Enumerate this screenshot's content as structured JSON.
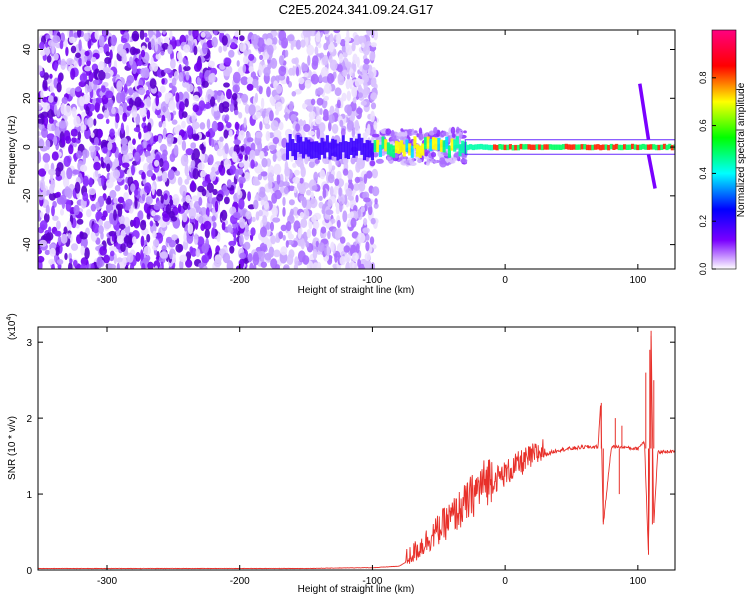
{
  "chart_data": [
    {
      "type": "heatmap",
      "title": "C2E5.2024.341.09.24.G17",
      "xlabel": "Height of straight line (km)",
      "ylabel": "Frequency (Hz)",
      "xlim": [
        -352,
        128
      ],
      "ylim": [
        -50,
        48
      ],
      "x_ticks": [
        -300,
        -200,
        -100,
        0,
        100
      ],
      "x_tick_labels": [
        "-300",
        "-200",
        "-100",
        "0",
        "100"
      ],
      "y_ticks": [
        -40,
        -20,
        0,
        20,
        40
      ],
      "y_tick_labels": [
        "-40",
        "-20",
        "0",
        "20",
        "40"
      ],
      "colorbar": {
        "label": "Normalized spectral amplitude",
        "range": [
          0,
          1
        ],
        "ticks": [
          0.0,
          0.2,
          0.4,
          0.6,
          0.8
        ],
        "tick_labels": [
          "0.0",
          "0.2",
          "0.4",
          "0.6",
          "0.8"
        ],
        "colors": [
          "#ffffff",
          "#7a00ff",
          "#0000ff",
          "#00ffff",
          "#00ff00",
          "#ffff00",
          "#ff0000",
          "#ff0080"
        ]
      },
      "features": {
        "noise_region": [
          -352,
          -97
        ],
        "main_signal_frequency": 0,
        "spike_height": 103
      }
    },
    {
      "type": "line",
      "xlabel": "Height of straight line (km)",
      "ylabel": "SNR (10 * v/v)",
      "y_multiplier": "(x10",
      "y_multiplier_exp": "4",
      "y_multiplier_close": ")",
      "xlim": [
        -352,
        128
      ],
      "ylim": [
        0,
        3.2
      ],
      "x_ticks": [
        -300,
        -200,
        -100,
        0,
        100
      ],
      "x_tick_labels": [
        "-300",
        "-200",
        "-100",
        "0",
        "100"
      ],
      "y_ticks": [
        0,
        1,
        2,
        3
      ],
      "y_tick_labels": [
        "0",
        "1",
        "2",
        "3"
      ],
      "line_color": "#e8302a",
      "series": [
        {
          "x": [
            -352,
            -300,
            -250,
            -200,
            -150,
            -110,
            -100,
            -90,
            -80,
            -70,
            -60,
            -50,
            -40,
            -30,
            -20,
            -10,
            0,
            10,
            20,
            30,
            40,
            50,
            60,
            70,
            72,
            74,
            80,
            85,
            90,
            95,
            100,
            105,
            108,
            110,
            112,
            115,
            120,
            128
          ],
          "y": [
            0.02,
            0.02,
            0.02,
            0.02,
            0.02,
            0.03,
            0.03,
            0.04,
            0.05,
            0.15,
            0.3,
            0.45,
            0.6,
            0.75,
            0.95,
            1.1,
            1.2,
            1.32,
            1.42,
            1.52,
            1.58,
            1.6,
            1.62,
            1.62,
            2.2,
            0.6,
            1.62,
            1.62,
            1.62,
            1.6,
            1.6,
            1.7,
            0.2,
            3.1,
            0.6,
            1.55,
            1.56,
            1.56
          ]
        }
      ]
    }
  ]
}
